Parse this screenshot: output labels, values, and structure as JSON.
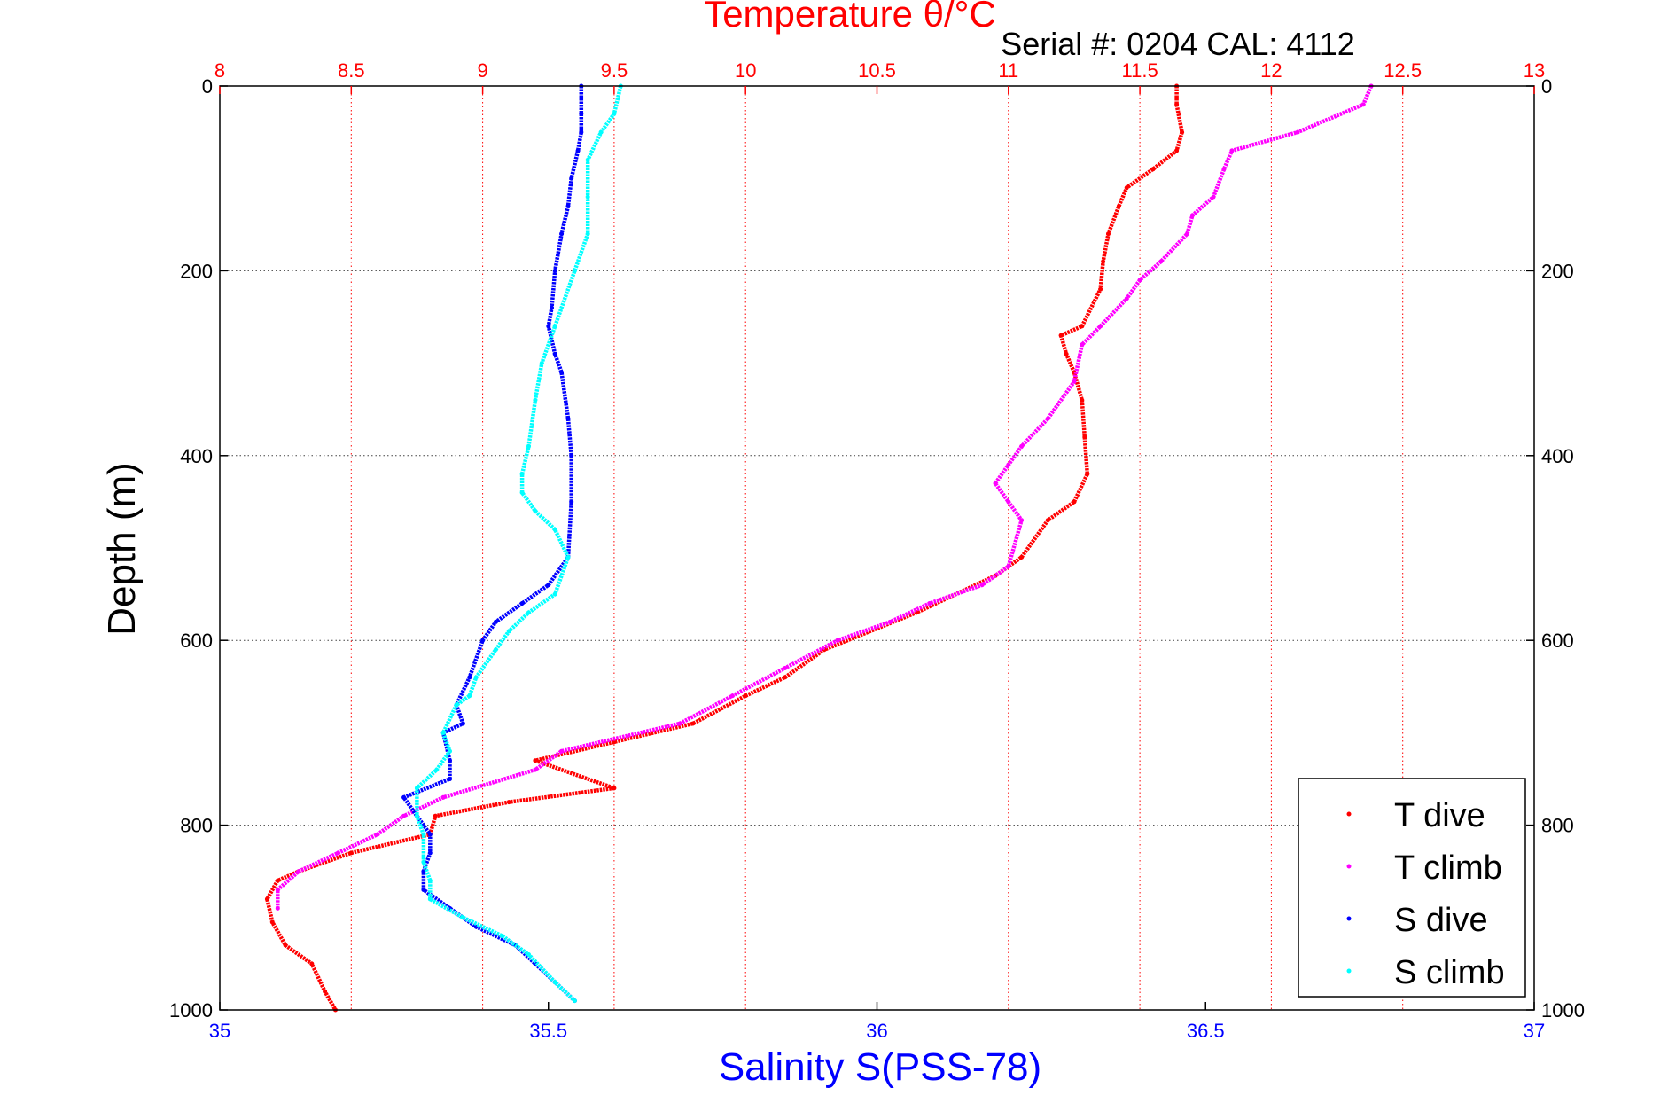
{
  "chart_data": {
    "type": "scatter",
    "title": "Temperature θ/°C",
    "subtitle": "Serial #: 0204  CAL: 4112",
    "xlabel": "Salinity S(PSS-78)",
    "ylabel": "Depth (m)",
    "temperature_axis": {
      "range": [
        8,
        13
      ],
      "ticks": [
        "8",
        "8.5",
        "9",
        "9.5",
        "10",
        "10.5",
        "11",
        "11.5",
        "12",
        "12.5",
        "13"
      ],
      "tick_values": [
        8,
        8.5,
        9,
        9.5,
        10,
        10.5,
        11,
        11.5,
        12,
        12.5,
        13
      ],
      "color": "#ff0000"
    },
    "salinity_axis": {
      "range": [
        35,
        37
      ],
      "ticks": [
        "35",
        "35.5",
        "36",
        "36.5",
        "37"
      ],
      "tick_values": [
        35,
        35.5,
        36,
        36.5,
        37
      ],
      "color": "#0000ff"
    },
    "depth_axis": {
      "range": [
        0,
        1000
      ],
      "reversed": true,
      "ticks": [
        "0",
        "200",
        "400",
        "600",
        "800",
        "1000"
      ],
      "tick_values": [
        0,
        200,
        400,
        600,
        800,
        1000
      ]
    },
    "grid": true,
    "legend_position": "bottom-right",
    "series": [
      {
        "name": "T dive",
        "axis": "temperature",
        "color": "#ff0000",
        "points": [
          [
            11.64,
            0
          ],
          [
            11.64,
            20
          ],
          [
            11.66,
            50
          ],
          [
            11.64,
            70
          ],
          [
            11.55,
            90
          ],
          [
            11.45,
            110
          ],
          [
            11.42,
            130
          ],
          [
            11.38,
            160
          ],
          [
            11.36,
            190
          ],
          [
            11.35,
            220
          ],
          [
            11.28,
            260
          ],
          [
            11.2,
            270
          ],
          [
            11.22,
            290
          ],
          [
            11.25,
            310
          ],
          [
            11.28,
            340
          ],
          [
            11.29,
            380
          ],
          [
            11.3,
            420
          ],
          [
            11.25,
            450
          ],
          [
            11.15,
            470
          ],
          [
            11.05,
            510
          ],
          [
            10.95,
            530
          ],
          [
            10.65,
            570
          ],
          [
            10.3,
            610
          ],
          [
            10.15,
            640
          ],
          [
            10.0,
            660
          ],
          [
            9.8,
            690
          ],
          [
            9.5,
            710
          ],
          [
            9.2,
            730
          ],
          [
            9.5,
            760
          ],
          [
            9.1,
            775
          ],
          [
            8.82,
            790
          ],
          [
            8.8,
            810
          ],
          [
            8.5,
            830
          ],
          [
            8.3,
            850
          ],
          [
            8.22,
            860
          ],
          [
            8.18,
            880
          ],
          [
            8.2,
            905
          ],
          [
            8.25,
            930
          ],
          [
            8.35,
            950
          ],
          [
            8.4,
            980
          ],
          [
            8.44,
            1000
          ]
        ]
      },
      {
        "name": "T climb",
        "axis": "temperature",
        "color": "#ff00ff",
        "points": [
          [
            12.38,
            0
          ],
          [
            12.35,
            20
          ],
          [
            12.1,
            50
          ],
          [
            11.85,
            70
          ],
          [
            11.82,
            90
          ],
          [
            11.78,
            120
          ],
          [
            11.7,
            140
          ],
          [
            11.68,
            160
          ],
          [
            11.58,
            190
          ],
          [
            11.5,
            210
          ],
          [
            11.45,
            230
          ],
          [
            11.35,
            260
          ],
          [
            11.28,
            280
          ],
          [
            11.25,
            320
          ],
          [
            11.15,
            360
          ],
          [
            11.05,
            390
          ],
          [
            11.0,
            410
          ],
          [
            10.95,
            430
          ],
          [
            11.0,
            450
          ],
          [
            11.05,
            470
          ],
          [
            11.0,
            520
          ],
          [
            10.9,
            540
          ],
          [
            10.7,
            560
          ],
          [
            10.55,
            580
          ],
          [
            10.35,
            600
          ],
          [
            10.15,
            630
          ],
          [
            9.95,
            660
          ],
          [
            9.75,
            690
          ],
          [
            9.3,
            720
          ],
          [
            9.2,
            740
          ],
          [
            8.85,
            770
          ],
          [
            8.7,
            790
          ],
          [
            8.6,
            810
          ],
          [
            8.45,
            830
          ],
          [
            8.3,
            850
          ],
          [
            8.22,
            870
          ],
          [
            8.22,
            890
          ]
        ]
      },
      {
        "name": "S dive",
        "axis": "salinity",
        "color": "#0000ff",
        "points": [
          [
            35.55,
            0
          ],
          [
            35.55,
            30
          ],
          [
            35.55,
            50
          ],
          [
            35.545,
            70
          ],
          [
            35.535,
            100
          ],
          [
            35.53,
            130
          ],
          [
            35.52,
            160
          ],
          [
            35.51,
            200
          ],
          [
            35.505,
            240
          ],
          [
            35.5,
            260
          ],
          [
            35.51,
            290
          ],
          [
            35.52,
            310
          ],
          [
            35.53,
            360
          ],
          [
            35.535,
            400
          ],
          [
            35.535,
            450
          ],
          [
            35.53,
            510
          ],
          [
            35.5,
            540
          ],
          [
            35.46,
            560
          ],
          [
            35.42,
            580
          ],
          [
            35.4,
            600
          ],
          [
            35.38,
            640
          ],
          [
            35.36,
            670
          ],
          [
            35.37,
            690
          ],
          [
            35.34,
            700
          ],
          [
            35.35,
            730
          ],
          [
            35.35,
            750
          ],
          [
            35.28,
            770
          ],
          [
            35.3,
            790
          ],
          [
            35.32,
            810
          ],
          [
            35.32,
            830
          ],
          [
            35.31,
            850
          ],
          [
            35.31,
            870
          ],
          [
            35.35,
            890
          ],
          [
            35.39,
            910
          ],
          [
            35.45,
            930
          ],
          [
            35.48,
            950
          ],
          [
            35.51,
            970
          ],
          [
            35.54,
            990
          ]
        ]
      },
      {
        "name": "S climb",
        "axis": "salinity",
        "color": "#00ffff",
        "points": [
          [
            35.61,
            0
          ],
          [
            35.6,
            30
          ],
          [
            35.58,
            50
          ],
          [
            35.56,
            80
          ],
          [
            35.56,
            120
          ],
          [
            35.56,
            160
          ],
          [
            35.54,
            200
          ],
          [
            35.51,
            260
          ],
          [
            35.49,
            300
          ],
          [
            35.48,
            340
          ],
          [
            35.47,
            390
          ],
          [
            35.46,
            420
          ],
          [
            35.46,
            440
          ],
          [
            35.48,
            460
          ],
          [
            35.51,
            480
          ],
          [
            35.53,
            510
          ],
          [
            35.51,
            550
          ],
          [
            35.47,
            570
          ],
          [
            35.44,
            590
          ],
          [
            35.42,
            610
          ],
          [
            35.39,
            640
          ],
          [
            35.38,
            660
          ],
          [
            35.36,
            670
          ],
          [
            35.34,
            700
          ],
          [
            35.35,
            720
          ],
          [
            35.33,
            740
          ],
          [
            35.3,
            760
          ],
          [
            35.3,
            790
          ],
          [
            35.31,
            810
          ],
          [
            35.31,
            840
          ],
          [
            35.32,
            860
          ],
          [
            35.32,
            880
          ],
          [
            35.37,
            900
          ],
          [
            35.43,
            920
          ],
          [
            35.47,
            940
          ],
          [
            35.51,
            970
          ],
          [
            35.54,
            990
          ]
        ]
      }
    ]
  }
}
